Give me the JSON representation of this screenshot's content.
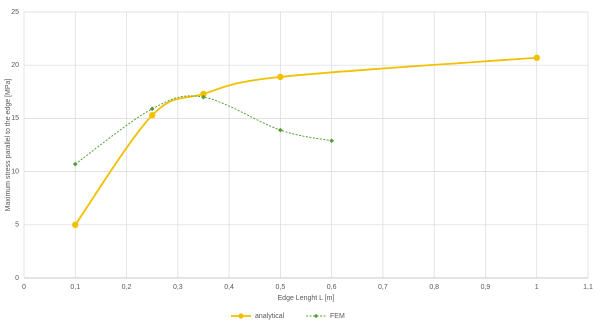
{
  "chart_data": {
    "type": "scatter-smooth",
    "x_label": "Edge Lenght L [m]",
    "y_label": "Maximum stress parallel to the edge [MPa]",
    "xlim": [
      0,
      1.1
    ],
    "xticks": [
      0,
      {
        "value": 0.1,
        "label": "0,1"
      },
      {
        "value": 0.2,
        "label": "0,2"
      },
      {
        "value": 0.3,
        "label": "0,3"
      },
      {
        "value": 0.4,
        "label": "0,4"
      },
      {
        "value": 0.5,
        "label": "0,5"
      },
      {
        "value": 0.6,
        "label": "0,6"
      },
      {
        "value": 0.7,
        "label": "0,7"
      },
      {
        "value": 0.8,
        "label": "0,8"
      },
      {
        "value": 0.9,
        "label": "0,9"
      },
      1,
      {
        "value": 1.1,
        "label": "1,1"
      }
    ],
    "ylim": [
      0,
      25
    ],
    "yticks": [
      0,
      5,
      10,
      15,
      20,
      25
    ],
    "grid": true,
    "legend": "bottom",
    "series": [
      {
        "name": "analytical",
        "color": "#f2c000",
        "marker": "circle",
        "dash": false,
        "x": [
          0.1,
          0.25,
          0.35,
          0.5,
          1
        ],
        "values": [
          5.0,
          15.3,
          17.3,
          18.9,
          20.7
        ]
      },
      {
        "name": "FEM",
        "color": "#5a9e3a",
        "marker": "diamond",
        "dash": true,
        "x": [
          0.1,
          0.25,
          0.35,
          0.5,
          0.6
        ],
        "values": [
          10.7,
          15.9,
          17.0,
          13.9,
          12.9
        ]
      }
    ]
  }
}
